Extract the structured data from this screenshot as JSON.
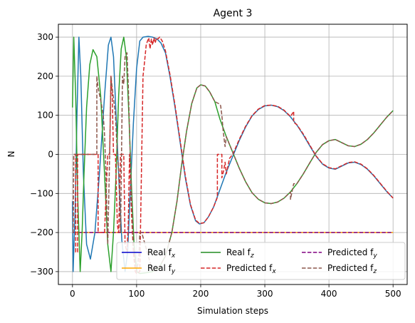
{
  "chart_data": {
    "type": "line",
    "title": "Agent 3",
    "xlabel": "Simulation steps",
    "ylabel": "N",
    "xlim": [
      -22,
      522
    ],
    "ylim": [
      -333,
      333
    ],
    "xticks": [
      0,
      100,
      200,
      300,
      400,
      500
    ],
    "yticks": [
      -300,
      -200,
      -100,
      0,
      100,
      200,
      300
    ],
    "grid": true,
    "legend_position": "lower-center",
    "legend_columns": 3,
    "legend": [
      {
        "label": "Real f",
        "sub": "x",
        "color": "#0000cc",
        "dash": "solid"
      },
      {
        "label": "Real f",
        "sub": "y",
        "color": "#ffa500",
        "dash": "solid"
      },
      {
        "label": "Real f",
        "sub": "z",
        "color": "#228b22",
        "dash": "solid"
      },
      {
        "label": "Predicted f",
        "sub": "x",
        "color": "#d62728",
        "dash": "dashed"
      },
      {
        "label": "Predicted f",
        "sub": "y",
        "color": "#800080",
        "dash": "dashed"
      },
      {
        "label": "Predicted f",
        "sub": "z",
        "color": "#8c564b",
        "dash": "dashed"
      }
    ],
    "series": [
      {
        "color": "#ffa500",
        "dash": "solid",
        "width": 1.5,
        "points": [
          [
            0,
            -200
          ],
          [
            500,
            -200
          ]
        ]
      },
      {
        "color": "#800080",
        "dash": "dashed",
        "width": 1.5,
        "points": [
          [
            0,
            -200
          ],
          [
            500,
            -200
          ]
        ]
      },
      {
        "color": "#1f77b4",
        "dash": "solid",
        "width": 1.5,
        "points": [
          [
            0,
            -120
          ],
          [
            1,
            -300
          ],
          [
            4,
            -150
          ],
          [
            7,
            100
          ],
          [
            10,
            300
          ],
          [
            13,
            200
          ],
          [
            17,
            -50
          ],
          [
            22,
            -230
          ],
          [
            28,
            -268
          ],
          [
            35,
            -200
          ],
          [
            42,
            -50
          ],
          [
            50,
            150
          ],
          [
            56,
            280
          ],
          [
            60,
            300
          ],
          [
            64,
            250
          ],
          [
            68,
            100
          ],
          [
            72,
            -50
          ],
          [
            77,
            -220
          ],
          [
            82,
            -300
          ],
          [
            86,
            -250
          ],
          [
            90,
            -100
          ],
          [
            95,
            80
          ],
          [
            100,
            220
          ],
          [
            105,
            290
          ],
          [
            110,
            300
          ],
          [
            118,
            302
          ],
          [
            125,
            300
          ],
          [
            132,
            295
          ],
          [
            138,
            285
          ],
          [
            145,
            260
          ],
          [
            152,
            200
          ],
          [
            160,
            120
          ],
          [
            168,
            30
          ],
          [
            176,
            -60
          ],
          [
            184,
            -130
          ],
          [
            192,
            -170
          ],
          [
            198,
            -178
          ],
          [
            205,
            -175
          ],
          [
            212,
            -160
          ],
          [
            220,
            -135
          ],
          [
            230,
            -90
          ],
          [
            240,
            -45
          ],
          [
            250,
            -5
          ],
          [
            260,
            35
          ],
          [
            270,
            70
          ],
          [
            280,
            98
          ],
          [
            290,
            115
          ],
          [
            300,
            124
          ],
          [
            310,
            126
          ],
          [
            320,
            122
          ],
          [
            330,
            112
          ],
          [
            340,
            96
          ],
          [
            350,
            75
          ],
          [
            360,
            50
          ],
          [
            370,
            22
          ],
          [
            380,
            -5
          ],
          [
            390,
            -25
          ],
          [
            400,
            -35
          ],
          [
            410,
            -38
          ],
          [
            420,
            -30
          ],
          [
            430,
            -22
          ],
          [
            440,
            -20
          ],
          [
            450,
            -26
          ],
          [
            460,
            -38
          ],
          [
            470,
            -55
          ],
          [
            480,
            -75
          ],
          [
            490,
            -95
          ],
          [
            500,
            -112
          ]
        ]
      },
      {
        "color": "#2ca02c",
        "dash": "solid",
        "width": 1.5,
        "points": [
          [
            0,
            120
          ],
          [
            2,
            300
          ],
          [
            5,
            150
          ],
          [
            8,
            -100
          ],
          [
            12,
            -300
          ],
          [
            15,
            -200
          ],
          [
            18,
            -50
          ],
          [
            22,
            120
          ],
          [
            27,
            230
          ],
          [
            32,
            268
          ],
          [
            38,
            250
          ],
          [
            44,
            150
          ],
          [
            50,
            -50
          ],
          [
            55,
            -230
          ],
          [
            60,
            -300
          ],
          [
            64,
            -200
          ],
          [
            68,
            -50
          ],
          [
            72,
            150
          ],
          [
            76,
            270
          ],
          [
            80,
            300
          ],
          [
            84,
            250
          ],
          [
            88,
            100
          ],
          [
            92,
            -80
          ],
          [
            96,
            -230
          ],
          [
            100,
            -300
          ],
          [
            105,
            -305
          ],
          [
            115,
            -303
          ],
          [
            125,
            -300
          ],
          [
            135,
            -290
          ],
          [
            145,
            -260
          ],
          [
            155,
            -200
          ],
          [
            163,
            -120
          ],
          [
            170,
            -30
          ],
          [
            178,
            60
          ],
          [
            186,
            130
          ],
          [
            194,
            170
          ],
          [
            200,
            178
          ],
          [
            207,
            175
          ],
          [
            214,
            160
          ],
          [
            222,
            135
          ],
          [
            230,
            90
          ],
          [
            240,
            45
          ],
          [
            250,
            5
          ],
          [
            260,
            -35
          ],
          [
            270,
            -70
          ],
          [
            280,
            -98
          ],
          [
            290,
            -115
          ],
          [
            300,
            -124
          ],
          [
            310,
            -126
          ],
          [
            320,
            -122
          ],
          [
            330,
            -112
          ],
          [
            340,
            -96
          ],
          [
            350,
            -75
          ],
          [
            360,
            -50
          ],
          [
            370,
            -22
          ],
          [
            380,
            5
          ],
          [
            390,
            25
          ],
          [
            400,
            35
          ],
          [
            410,
            38
          ],
          [
            420,
            30
          ],
          [
            430,
            22
          ],
          [
            440,
            20
          ],
          [
            450,
            26
          ],
          [
            460,
            38
          ],
          [
            470,
            55
          ],
          [
            480,
            75
          ],
          [
            490,
            95
          ],
          [
            500,
            112
          ]
        ]
      },
      {
        "color": "#d62728",
        "dash": "dashed",
        "width": 1.5,
        "points": [
          [
            0,
            -200
          ],
          [
            1,
            -200
          ],
          [
            2,
            0
          ],
          [
            5,
            0
          ],
          [
            5,
            -250
          ],
          [
            8,
            -250
          ],
          [
            8,
            0
          ],
          [
            40,
            0
          ],
          [
            40,
            -200
          ],
          [
            50,
            -200
          ],
          [
            55,
            0
          ],
          [
            58,
            0
          ],
          [
            60,
            200
          ],
          [
            62,
            150
          ],
          [
            64,
            0
          ],
          [
            67,
            0
          ],
          [
            70,
            -180
          ],
          [
            72,
            -200
          ],
          [
            75,
            0
          ],
          [
            80,
            0
          ],
          [
            82,
            -230
          ],
          [
            85,
            -250
          ],
          [
            87,
            -180
          ],
          [
            89,
            0
          ],
          [
            92,
            -150
          ],
          [
            95,
            -250
          ],
          [
            98,
            -300
          ],
          [
            100,
            -305
          ],
          [
            105,
            -300
          ],
          [
            110,
            200
          ],
          [
            112,
            230
          ],
          [
            115,
            280
          ],
          [
            117,
            290
          ],
          [
            119,
            298
          ],
          [
            121,
            270
          ],
          [
            123,
            295
          ],
          [
            125,
            280
          ],
          [
            127,
            298
          ],
          [
            129,
            285
          ],
          [
            131,
            298
          ],
          [
            133,
            295
          ],
          [
            136,
            300
          ],
          [
            140,
            290
          ],
          [
            145,
            265
          ],
          [
            152,
            205
          ],
          [
            160,
            125
          ],
          [
            168,
            35
          ],
          [
            176,
            -55
          ],
          [
            184,
            -128
          ],
          [
            192,
            -168
          ],
          [
            198,
            -177
          ],
          [
            205,
            -175
          ],
          [
            212,
            -160
          ],
          [
            220,
            -135
          ],
          [
            226,
            -110
          ],
          [
            226,
            0
          ],
          [
            233,
            0
          ],
          [
            233,
            -60
          ],
          [
            236,
            -40
          ],
          [
            238,
            -20
          ],
          [
            240,
            -50
          ],
          [
            245,
            -10
          ],
          [
            250,
            0
          ],
          [
            260,
            38
          ],
          [
            270,
            72
          ],
          [
            280,
            99
          ],
          [
            290,
            116
          ],
          [
            300,
            125
          ],
          [
            310,
            126
          ],
          [
            320,
            123
          ],
          [
            330,
            113
          ],
          [
            340,
            97
          ],
          [
            345,
            110
          ],
          [
            345,
            82
          ],
          [
            350,
            76
          ],
          [
            360,
            52
          ],
          [
            370,
            24
          ],
          [
            380,
            -4
          ],
          [
            390,
            -24
          ],
          [
            400,
            -34
          ],
          [
            410,
            -37
          ],
          [
            420,
            -29
          ],
          [
            430,
            -21
          ],
          [
            440,
            -19
          ],
          [
            450,
            -25
          ],
          [
            460,
            -37
          ],
          [
            470,
            -54
          ],
          [
            480,
            -74
          ],
          [
            490,
            -94
          ],
          [
            500,
            -112
          ]
        ]
      },
      {
        "color": "#8c564b",
        "dash": "dashed",
        "width": 1.5,
        "points": [
          [
            0,
            -200
          ],
          [
            1,
            -200
          ],
          [
            2,
            0
          ],
          [
            35,
            0
          ],
          [
            38,
            0
          ],
          [
            38,
            200
          ],
          [
            40,
            170
          ],
          [
            45,
            130
          ],
          [
            48,
            100
          ],
          [
            50,
            50
          ],
          [
            52,
            -40
          ],
          [
            55,
            -230
          ],
          [
            58,
            0
          ],
          [
            60,
            200
          ],
          [
            62,
            170
          ],
          [
            65,
            130
          ],
          [
            67,
            100
          ],
          [
            70,
            0
          ],
          [
            72,
            -40
          ],
          [
            75,
            -200
          ],
          [
            78,
            200
          ],
          [
            80,
            180
          ],
          [
            82,
            250
          ],
          [
            85,
            260
          ],
          [
            87,
            180
          ],
          [
            90,
            0
          ],
          [
            92,
            -100
          ],
          [
            95,
            -230
          ],
          [
            97,
            -260
          ],
          [
            100,
            -300
          ],
          [
            102,
            -280
          ],
          [
            104,
            -250
          ],
          [
            105,
            -200
          ],
          [
            108,
            -200
          ],
          [
            125,
            -300
          ],
          [
            135,
            -290
          ],
          [
            145,
            -260
          ],
          [
            155,
            -200
          ],
          [
            163,
            -120
          ],
          [
            170,
            -30
          ],
          [
            178,
            60
          ],
          [
            186,
            130
          ],
          [
            194,
            170
          ],
          [
            200,
            178
          ],
          [
            207,
            175
          ],
          [
            214,
            160
          ],
          [
            222,
            135
          ],
          [
            228,
            130
          ],
          [
            231,
            125
          ],
          [
            233,
            100
          ],
          [
            235,
            60
          ],
          [
            238,
            20
          ],
          [
            240,
            45
          ],
          [
            250,
            5
          ],
          [
            260,
            -35
          ],
          [
            270,
            -70
          ],
          [
            280,
            -98
          ],
          [
            290,
            -115
          ],
          [
            300,
            -124
          ],
          [
            310,
            -126
          ],
          [
            320,
            -122
          ],
          [
            330,
            -112
          ],
          [
            340,
            -96
          ],
          [
            340,
            -115
          ],
          [
            345,
            -75
          ],
          [
            350,
            -75
          ],
          [
            360,
            -50
          ],
          [
            370,
            -22
          ],
          [
            380,
            5
          ],
          [
            390,
            25
          ],
          [
            400,
            35
          ],
          [
            410,
            38
          ],
          [
            420,
            30
          ],
          [
            430,
            22
          ],
          [
            440,
            20
          ],
          [
            450,
            26
          ],
          [
            460,
            38
          ],
          [
            470,
            55
          ],
          [
            480,
            75
          ],
          [
            490,
            95
          ],
          [
            500,
            112
          ]
        ]
      }
    ]
  }
}
